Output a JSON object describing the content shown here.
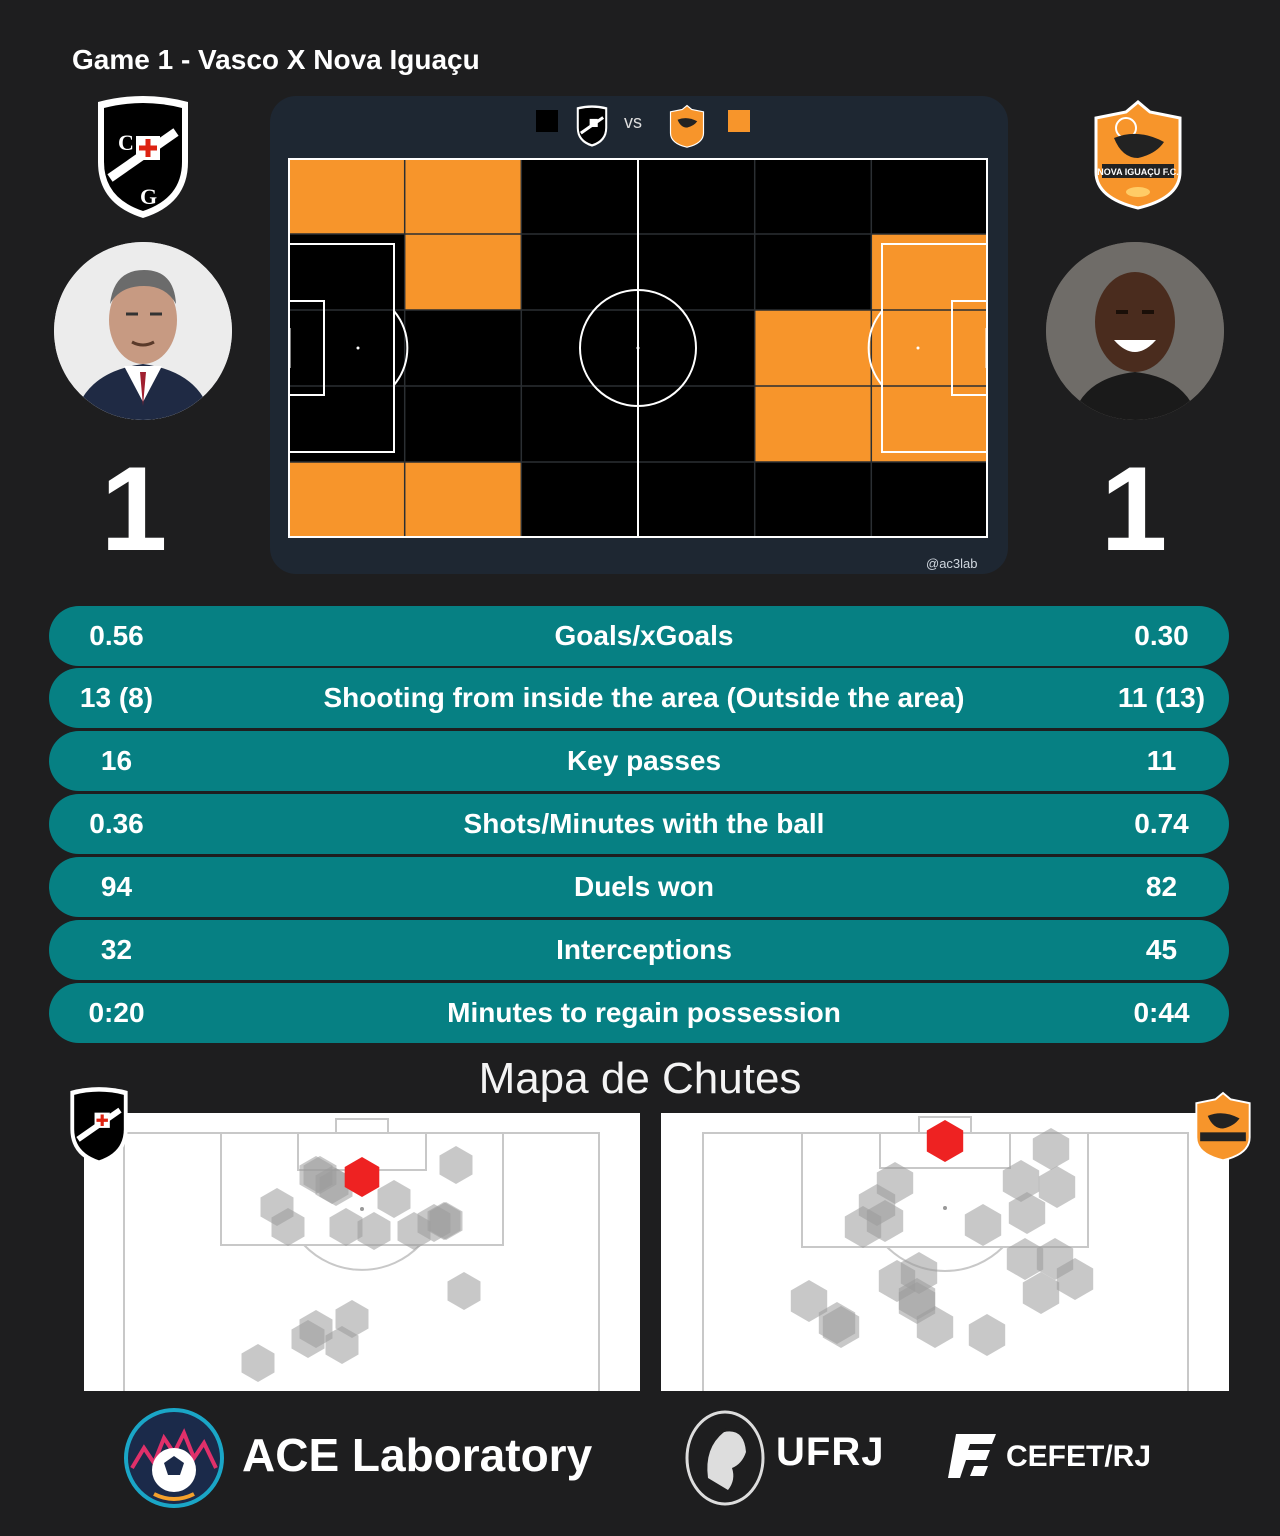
{
  "header": {
    "title": "Game 1 - Vasco X Nova Iguaçu"
  },
  "teams": {
    "home": {
      "name": "Vasco",
      "crest_icon": "vasco-crest-icon",
      "color": "#000000",
      "score": "1"
    },
    "away": {
      "name": "Nova Iguaçu",
      "crest_icon": "nova-iguacu-crest-icon",
      "color": "#f7952b",
      "score": "1"
    }
  },
  "pitch_map": {
    "legend_vs": "vs",
    "watermark": "@ac3lab",
    "colors": {
      "home": "#000000",
      "away": "#f7952b"
    },
    "dominance_grid": [
      [
        "away",
        "away",
        "home",
        "home",
        "home",
        "home"
      ],
      [
        "home",
        "away",
        "home",
        "home",
        "home",
        "away"
      ],
      [
        "home",
        "home",
        "home",
        "home",
        "away",
        "away"
      ],
      [
        "home",
        "home",
        "home",
        "home",
        "away",
        "away"
      ],
      [
        "away",
        "away",
        "home",
        "home",
        "home",
        "home"
      ]
    ]
  },
  "stats": [
    {
      "label": "Goals/xGoals",
      "home": "0.56",
      "away": "0.30"
    },
    {
      "label": "Shooting from inside the area (Outside the area)",
      "home": "13 (8)",
      "away": "11 (13)"
    },
    {
      "label": "Key passes",
      "home": "16",
      "away": "11"
    },
    {
      "label": "Shots/Minutes with the ball",
      "home": "0.36",
      "away": "0.74"
    },
    {
      "label": "Duels won",
      "home": "94",
      "away": "82"
    },
    {
      "label": "Interceptions",
      "home": "32",
      "away": "45"
    },
    {
      "label": "Minutes to regain possession",
      "home": "0:20",
      "away": "0:44"
    }
  ],
  "shot_maps": {
    "title": "Mapa de Chutes",
    "goal_color": "#ee2222",
    "shot_color": "#9a9a9a"
  },
  "footer": {
    "ace_label": "ACE Laboratory",
    "ufrj_label": "UFRJ",
    "cefet_label": "CEFET/RJ"
  }
}
